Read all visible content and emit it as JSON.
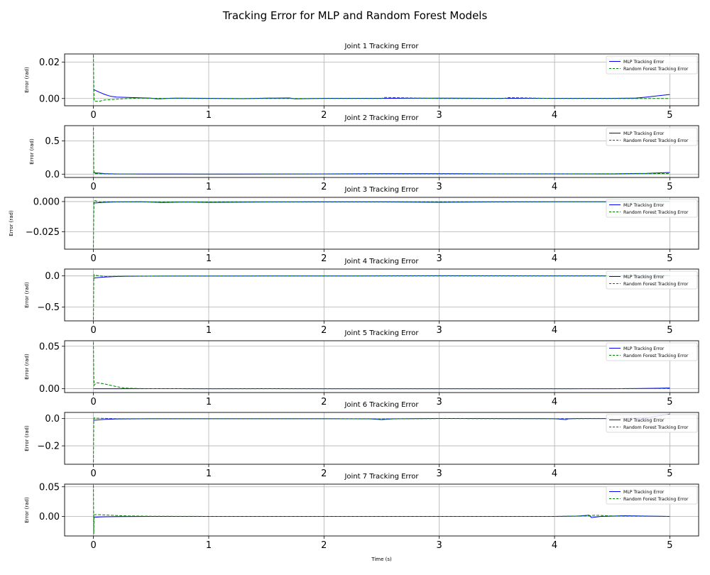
{
  "figure": {
    "title": "Tracking Error for MLP and Random Forest Models",
    "xlabel": "Time (s)"
  },
  "colors": {
    "mlp": "#0000ff",
    "rf": "#008000",
    "grid": "#b0b0b0"
  },
  "legend": {
    "placement": "top-right",
    "mlp_label": "MLP Tracking Error",
    "rf_label": "Random Forest Tracking Error"
  },
  "chart_data": [
    {
      "type": "line",
      "title": "Joint 1 Tracking Error",
      "xlabel": "",
      "ylabel": "Error (rad)",
      "xlim": [
        -0.25,
        5.25
      ],
      "ylim": [
        -0.004,
        0.0245
      ],
      "xticks": [
        0,
        1,
        2,
        3,
        4,
        5
      ],
      "yticks": [
        0.0,
        0.02
      ],
      "ytick_labels": [
        "0.00",
        "0.02"
      ],
      "grid": true,
      "series": [
        {
          "name": "MLP Tracking Error",
          "style": "solid",
          "x": [
            0,
            0.05,
            0.1,
            0.15,
            0.2,
            0.3,
            0.4,
            0.5,
            0.55,
            0.6,
            0.65,
            0.7,
            1.0,
            1.3,
            1.5,
            1.7,
            1.75,
            2.0,
            2.5,
            3.0,
            3.5,
            4.0,
            4.5,
            4.7,
            4.8,
            4.9,
            5.0
          ],
          "y": [
            0.005,
            0.0035,
            0.0022,
            0.0012,
            0.0008,
            0.0006,
            0.0004,
            0.0002,
            -0.0002,
            -0.0001,
            0.0001,
            0.0002,
            0.0001,
            -0.0001,
            0.0002,
            0.0003,
            -0.0002,
            0.0001,
            0.0001,
            0.0002,
            0.0001,
            0.0001,
            0.0001,
            0.0002,
            0.0008,
            0.0015,
            0.0022
          ]
        },
        {
          "name": "Random Forest Tracking Error",
          "style": "dashed",
          "x": [
            0,
            0.003,
            0.006,
            0.01,
            0.05,
            0.1,
            0.2,
            0.3,
            0.4,
            0.5,
            1.0,
            2.0,
            2.5,
            2.52,
            3.0,
            3.55,
            3.6,
            4.0,
            5.0
          ],
          "y": [
            0.024,
            0.008,
            -0.001,
            -0.0015,
            -0.0015,
            -0.0008,
            -0.0004,
            0.0,
            0.0002,
            0.0001,
            0.0,
            0.0,
            0.0,
            0.0006,
            0.0,
            0.0,
            0.0005,
            0.0,
            0.0
          ]
        }
      ]
    },
    {
      "type": "line",
      "title": "Joint 2 Tracking Error",
      "xlabel": "",
      "ylabel": "Error (rad)",
      "xlim": [
        -0.25,
        5.25
      ],
      "ylim": [
        -0.05,
        0.73
      ],
      "xticks": [
        0,
        1,
        2,
        3,
        4,
        5
      ],
      "yticks": [
        0.0,
        0.5
      ],
      "ytick_labels": [
        "0.0",
        "0.5"
      ],
      "grid": true,
      "series": [
        {
          "name": "MLP Tracking Error",
          "style": "solid",
          "x": [
            0,
            0.05,
            0.1,
            0.2,
            0.5,
            1.0,
            2.0,
            2.5,
            3.0,
            3.5,
            4.0,
            4.5,
            4.8,
            5.0
          ],
          "y": [
            0.02,
            0.015,
            0.008,
            0.003,
            0.002,
            0.001,
            0.003,
            0.008,
            0.008,
            0.005,
            0.005,
            0.004,
            0.012,
            0.025
          ]
        },
        {
          "name": "Random Forest Tracking Error",
          "style": "dashed",
          "x": [
            0,
            0.003,
            0.006,
            0.02,
            0.2,
            0.5,
            1.0,
            2.0,
            3.0,
            4.0,
            5.0
          ],
          "y": [
            0.7,
            0.1,
            0.01,
            0.008,
            0.002,
            0.001,
            0.001,
            0.002,
            0.004,
            0.003,
            0.01
          ]
        }
      ]
    },
    {
      "type": "line",
      "title": "Joint 3 Tracking Error",
      "xlabel": "",
      "ylabel": "Error (rad)",
      "xlim": [
        -0.25,
        5.25
      ],
      "ylim": [
        -0.0395,
        0.0035
      ],
      "xticks": [
        0,
        1,
        2,
        3,
        4,
        5
      ],
      "yticks": [
        -0.025,
        0.0
      ],
      "ytick_labels": [
        "−0.025",
        "0.000"
      ],
      "grid": true,
      "series": [
        {
          "name": "MLP Tracking Error",
          "style": "solid",
          "x": [
            0,
            0.05,
            0.1,
            0.2,
            0.4,
            0.6,
            0.8,
            1.0,
            1.5,
            2.0,
            2.5,
            3.0,
            3.5,
            4.0,
            4.5,
            5.0
          ],
          "y": [
            -0.0012,
            -0.0009,
            -0.0006,
            -0.0003,
            -0.0002,
            -0.0008,
            -0.0004,
            -0.0007,
            -0.0004,
            -0.0003,
            -0.0003,
            -0.0006,
            -0.0003,
            -0.0002,
            -0.0002,
            0.0002
          ]
        },
        {
          "name": "Random Forest Tracking Error",
          "style": "dashed",
          "x": [
            0,
            0.003,
            0.006,
            0.01,
            0.05,
            0.1,
            0.5,
            1.0,
            2.0,
            3.0,
            4.0,
            5.0
          ],
          "y": [
            -0.038,
            -0.01,
            0.0005,
            0.0008,
            -0.0002,
            -0.0002,
            -0.0003,
            -0.0003,
            -0.0002,
            -0.0002,
            -0.0002,
            -0.0002
          ]
        }
      ]
    },
    {
      "type": "line",
      "title": "Joint 4 Tracking Error",
      "xlabel": "",
      "ylabel": "Error (rad)",
      "xlim": [
        -0.25,
        5.25
      ],
      "ylim": [
        -0.72,
        0.11
      ],
      "xticks": [
        0,
        1,
        2,
        3,
        4,
        5
      ],
      "yticks": [
        -0.5,
        0.0
      ],
      "ytick_labels": [
        "−0.5",
        "0.0"
      ],
      "grid": true,
      "series": [
        {
          "name": "MLP Tracking Error",
          "style": "solid",
          "x": [
            0,
            0.05,
            0.1,
            0.2,
            0.3,
            0.5,
            1.0,
            2.0,
            2.5,
            3.0,
            3.5,
            4.0,
            4.5,
            5.0
          ],
          "y": [
            -0.035,
            -0.025,
            -0.018,
            -0.01,
            -0.005,
            -0.003,
            -0.002,
            -0.001,
            0.0,
            0.003,
            0.002,
            0.001,
            0.0,
            0.005
          ]
        },
        {
          "name": "Random Forest Tracking Error",
          "style": "dashed",
          "x": [
            0,
            0.003,
            0.006,
            0.02,
            0.1,
            0.2,
            0.5,
            1.0,
            2.0,
            3.0,
            4.0,
            5.0
          ],
          "y": [
            -0.7,
            -0.05,
            0.02,
            0.01,
            -0.01,
            -0.006,
            -0.003,
            -0.002,
            -0.001,
            -0.001,
            -0.001,
            0.0
          ]
        }
      ]
    },
    {
      "type": "line",
      "title": "Joint 5 Tracking Error",
      "xlabel": "",
      "ylabel": "Error (rad)",
      "xlim": [
        -0.25,
        5.25
      ],
      "ylim": [
        -0.0045,
        0.0565
      ],
      "xticks": [
        0,
        1,
        2,
        3,
        4,
        5
      ],
      "yticks": [
        0.0,
        0.05
      ],
      "ytick_labels": [
        "0.00",
        "0.05"
      ],
      "grid": true,
      "series": [
        {
          "name": "MLP Tracking Error",
          "style": "solid",
          "x": [
            0,
            0.1,
            0.2,
            0.5,
            1.0,
            1.5,
            2.0,
            3.0,
            4.0,
            4.5,
            4.7,
            4.9,
            5.0
          ],
          "y": [
            0.0,
            0.0,
            0.0,
            0.0001,
            0.0,
            0.0001,
            0.0,
            0.0,
            0.0,
            0.0,
            0.0002,
            0.0006,
            0.0009
          ]
        },
        {
          "name": "Random Forest Tracking Error",
          "style": "dashed",
          "x": [
            0,
            0.003,
            0.006,
            0.01,
            0.03,
            0.06,
            0.1,
            0.15,
            0.2,
            0.25,
            0.3,
            0.4,
            0.5,
            1.0,
            2.0,
            3.0,
            4.0,
            4.8,
            5.0
          ],
          "y": [
            0.055,
            0.015,
            0.004,
            0.005,
            0.007,
            0.0065,
            0.0055,
            0.004,
            0.0025,
            0.0012,
            0.0006,
            0.0002,
            0.0001,
            0.0,
            0.0,
            0.0,
            0.0,
            0.0002,
            0.0003
          ]
        }
      ]
    },
    {
      "type": "line",
      "title": "Joint 6 Tracking Error",
      "xlabel": "",
      "ylabel": "Error (rad)",
      "xlim": [
        -0.25,
        5.25
      ],
      "ylim": [
        -0.335,
        0.045
      ],
      "xticks": [
        0,
        1,
        2,
        3,
        4,
        5
      ],
      "yticks": [
        -0.2,
        0.0
      ],
      "ytick_labels": [
        "−0.2",
        "0.0"
      ],
      "grid": true,
      "series": [
        {
          "name": "MLP Tracking Error",
          "style": "solid",
          "x": [
            0,
            0.05,
            0.1,
            0.2,
            0.5,
            1.0,
            2.0,
            2.4,
            2.5,
            2.6,
            3.0,
            4.0,
            4.1,
            4.12,
            4.2,
            4.5,
            4.8,
            5.0
          ],
          "y": [
            -0.013,
            -0.009,
            -0.006,
            -0.003,
            -0.001,
            -0.001,
            -0.001,
            -0.002,
            -0.008,
            -0.002,
            0.001,
            -0.001,
            -0.008,
            -0.002,
            0.0,
            0.0,
            0.005,
            0.033
          ]
        },
        {
          "name": "Random Forest Tracking Error",
          "style": "dashed",
          "x": [
            0,
            0.003,
            0.006,
            0.02,
            0.2,
            1.0,
            2.0,
            2.5,
            3.0,
            4.0,
            5.0
          ],
          "y": [
            -0.32,
            -0.02,
            0.005,
            0.003,
            -0.001,
            -0.001,
            -0.001,
            -0.003,
            0.0,
            -0.001,
            0.002
          ]
        }
      ]
    },
    {
      "type": "line",
      "title": "Joint 7 Tracking Error",
      "xlabel": "Time (s)",
      "ylabel": "Error (rad)",
      "xlim": [
        -0.25,
        5.25
      ],
      "ylim": [
        -0.033,
        0.0545
      ],
      "xticks": [
        0,
        1,
        2,
        3,
        4,
        5
      ],
      "yticks": [
        0.0,
        0.05
      ],
      "ytick_labels": [
        "0.00",
        "0.05"
      ],
      "grid": true,
      "series": [
        {
          "name": "MLP Tracking Error",
          "style": "solid",
          "x": [
            0,
            0.05,
            0.1,
            0.2,
            0.5,
            1.0,
            2.0,
            3.0,
            4.0,
            4.2,
            4.3,
            4.32,
            4.4,
            4.5,
            4.6,
            5.0
          ],
          "y": [
            -0.0015,
            -0.001,
            -0.0006,
            -0.0003,
            0.0,
            0.0,
            0.0,
            0.0,
            0.0,
            0.0005,
            0.002,
            -0.002,
            0.0,
            0.0005,
            0.0012,
            0.0
          ]
        },
        {
          "name": "Random Forest Tracking Error",
          "style": "dashed",
          "x": [
            0,
            0.003,
            0.006,
            0.01,
            0.05,
            0.1,
            0.2,
            0.3,
            0.5,
            1.0,
            2.0,
            3.0,
            4.0,
            4.3,
            4.35,
            4.5,
            5.0
          ],
          "y": [
            0.053,
            -0.03,
            0.002,
            0.003,
            0.003,
            0.0025,
            0.0015,
            0.0008,
            0.0003,
            0.0,
            0.0,
            0.0,
            0.0,
            0.001,
            0.002,
            0.0008,
            0.0
          ]
        }
      ]
    }
  ]
}
